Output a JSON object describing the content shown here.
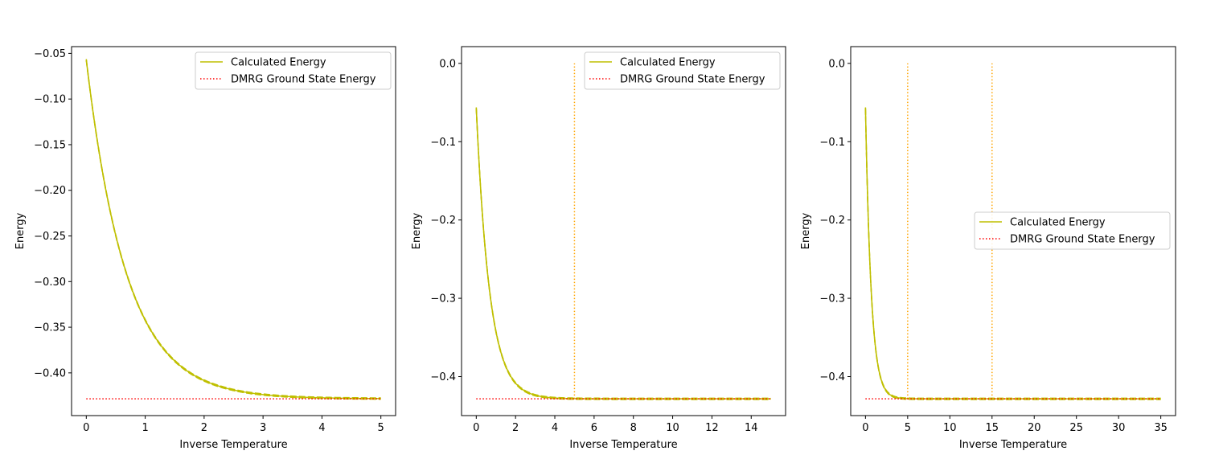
{
  "chart_data": [
    {
      "type": "line",
      "xlabel": "Inverse Temperature",
      "ylabel": "Energy",
      "xlim": [
        -0.25,
        5.25
      ],
      "ylim": [
        -0.4468,
        -0.0426
      ],
      "xticks": [
        0,
        1,
        2,
        3,
        4,
        5
      ],
      "xtick_labels": [
        "0",
        "1",
        "2",
        "3",
        "4",
        "5"
      ],
      "yticks": [
        -0.05,
        -0.1,
        -0.15,
        -0.2,
        -0.25,
        -0.3,
        -0.35,
        -0.4
      ],
      "ytick_labels": [
        "−0.05",
        "−0.10",
        "−0.15",
        "−0.20",
        "−0.25",
        "−0.30",
        "−0.35",
        "−0.40"
      ],
      "legend": {
        "position": "upper right",
        "entries": [
          "Calculated Energy",
          "DMRG Ground State Energy"
        ]
      },
      "series": [
        {
          "name": "Calculated Energy",
          "color": "#bfbf00",
          "style": "solid",
          "model": {
            "e0": -0.4284,
            "a": 0.3714,
            "k": 1.46,
            "x0": 0,
            "x1": 5
          }
        },
        {
          "name": "DMRG Ground State Energy",
          "color": "#ff0000",
          "style": "dotted",
          "x": [
            0,
            5
          ],
          "y": [
            -0.4284,
            -0.4284
          ]
        }
      ],
      "vlines": []
    },
    {
      "type": "line",
      "xlabel": "Inverse Temperature",
      "ylabel": "Energy",
      "xlim": [
        -0.75,
        15.75
      ],
      "ylim": [
        -0.4498,
        0.0214
      ],
      "xticks": [
        0,
        2,
        4,
        6,
        8,
        10,
        12,
        14
      ],
      "xtick_labels": [
        "0",
        "2",
        "4",
        "6",
        "8",
        "10",
        "12",
        "14"
      ],
      "yticks": [
        0.0,
        -0.1,
        -0.2,
        -0.3,
        -0.4
      ],
      "ytick_labels": [
        "0.0",
        "−0.1",
        "−0.2",
        "−0.3",
        "−0.4"
      ],
      "legend": {
        "position": "upper right",
        "entries": [
          "Calculated Energy",
          "DMRG Ground State Energy"
        ]
      },
      "series": [
        {
          "name": "Calculated Energy",
          "color": "#bfbf00",
          "style": "solid",
          "model": {
            "e0": -0.4284,
            "a": 0.3714,
            "k": 1.46,
            "x0": 0,
            "x1": 15
          }
        },
        {
          "name": "DMRG Ground State Energy",
          "color": "#ff0000",
          "style": "dotted",
          "x": [
            0,
            15
          ],
          "y": [
            -0.4284,
            -0.4284
          ]
        }
      ],
      "vlines": [
        {
          "x": 5,
          "ymin": -0.4284,
          "ymax": 0.0,
          "color": "#ffa500",
          "style": "dotted"
        }
      ]
    },
    {
      "type": "line",
      "xlabel": "Inverse Temperature",
      "ylabel": "Energy",
      "xlim": [
        -1.75,
        36.75
      ],
      "ylim": [
        -0.4498,
        0.0214
      ],
      "xticks": [
        0,
        5,
        10,
        15,
        20,
        25,
        30,
        35
      ],
      "xtick_labels": [
        "0",
        "5",
        "10",
        "15",
        "20",
        "25",
        "30",
        "35"
      ],
      "yticks": [
        0.0,
        -0.1,
        -0.2,
        -0.3,
        -0.4
      ],
      "ytick_labels": [
        "0.0",
        "−0.1",
        "−0.2",
        "−0.3",
        "−0.4"
      ],
      "legend": {
        "position": "center right",
        "entries": [
          "Calculated Energy",
          "DMRG Ground State Energy"
        ]
      },
      "series": [
        {
          "name": "Calculated Energy",
          "color": "#bfbf00",
          "style": "solid",
          "model": {
            "e0": -0.4284,
            "a": 0.3714,
            "k": 1.46,
            "x0": 0,
            "x1": 35
          }
        },
        {
          "name": "DMRG Ground State Energy",
          "color": "#ff0000",
          "style": "dotted",
          "x": [
            0,
            35
          ],
          "y": [
            -0.4284,
            -0.4284
          ]
        }
      ],
      "vlines": [
        {
          "x": 5,
          "ymin": -0.4284,
          "ymax": 0.0,
          "color": "#ffa500",
          "style": "dotted"
        },
        {
          "x": 15,
          "ymin": -0.4284,
          "ymax": 0.0,
          "color": "#ffa500",
          "style": "dotted"
        }
      ]
    }
  ]
}
